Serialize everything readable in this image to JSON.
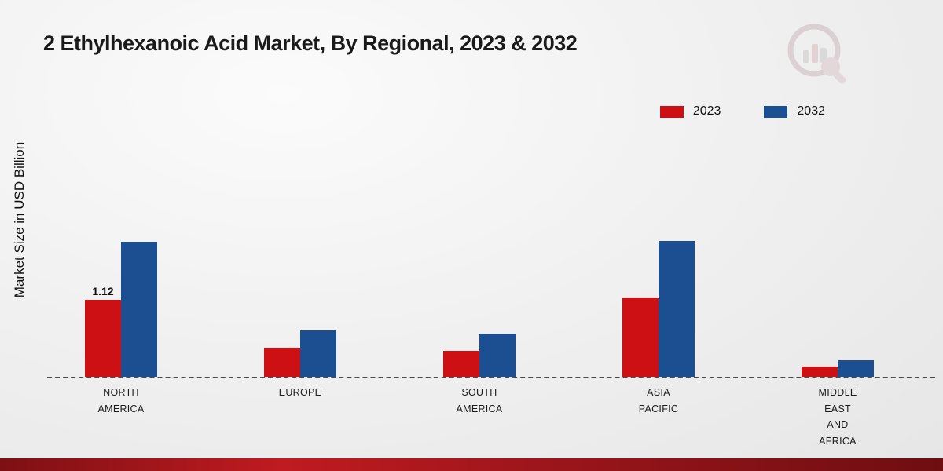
{
  "title": "2 Ethylhexanoic Acid Market, By Regional, 2023 & 2032",
  "y_axis_label": "Market Size in USD Billion",
  "legend": {
    "items": [
      {
        "label": "2023",
        "color": "#cc1013"
      },
      {
        "label": "2032",
        "color": "#1b4f91"
      }
    ]
  },
  "chart_data": {
    "type": "bar",
    "title": "2 Ethylhexanoic Acid Market, By Regional, 2023 & 2032",
    "ylabel": "Market Size in USD Billion",
    "xlabel": "",
    "ylim": [
      0,
      2.6
    ],
    "grid": false,
    "legend_position": "top-right",
    "baseline_style": "dashed",
    "categories": [
      "NORTH\nAMERICA",
      "EUROPE",
      "SOUTH\nAMERICA",
      "ASIA\nPACIFIC",
      "MIDDLE\nEAST\nAND\nAFRICA"
    ],
    "series": [
      {
        "name": "2023",
        "color": "#cc1013",
        "values": [
          1.12,
          0.42,
          0.38,
          1.15,
          0.15
        ]
      },
      {
        "name": "2032",
        "color": "#1b4f91",
        "values": [
          1.97,
          0.67,
          0.63,
          1.98,
          0.24
        ]
      }
    ],
    "annotations": [
      {
        "series": "2023",
        "category_index": 0,
        "text": "1.12"
      }
    ]
  },
  "branding": {
    "logo_name": "market-research-logo"
  }
}
